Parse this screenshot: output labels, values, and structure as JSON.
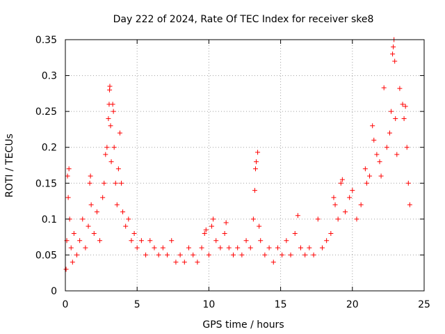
{
  "chart_data": {
    "type": "scatter",
    "title": "Day 222 of 2024, Rate Of TEC Index for receiver ske8",
    "xlabel": "GPS time / hours",
    "ylabel": "ROTI / TECUs",
    "xlim": [
      0,
      25
    ],
    "ylim": [
      0,
      0.35
    ],
    "xticks": [
      0,
      5,
      10,
      15,
      20,
      25
    ],
    "xtick_labels": [
      "0",
      "5",
      "10",
      "15",
      "20",
      "25"
    ],
    "yticks": [
      0,
      0.05,
      0.1,
      0.15,
      0.2,
      0.25,
      0.3,
      0.35
    ],
    "ytick_labels": [
      "0",
      "0.05",
      "0.1",
      "0.15",
      "0.2",
      "0.25",
      "0.3",
      "0.35"
    ],
    "grid": true,
    "marker": "plus",
    "color": "#ff0000",
    "series": [
      {
        "name": "ROTI",
        "points": [
          [
            0.05,
            0.03
          ],
          [
            0.1,
            0.07
          ],
          [
            0.15,
            0.16
          ],
          [
            0.2,
            0.13
          ],
          [
            0.25,
            0.17
          ],
          [
            0.3,
            0.1
          ],
          [
            0.4,
            0.06
          ],
          [
            0.5,
            0.04
          ],
          [
            0.6,
            0.08
          ],
          [
            0.8,
            0.05
          ],
          [
            1.0,
            0.07
          ],
          [
            1.2,
            0.1
          ],
          [
            1.4,
            0.06
          ],
          [
            1.6,
            0.09
          ],
          [
            1.7,
            0.15
          ],
          [
            1.75,
            0.16
          ],
          [
            1.8,
            0.12
          ],
          [
            2.0,
            0.08
          ],
          [
            2.2,
            0.11
          ],
          [
            2.4,
            0.07
          ],
          [
            2.6,
            0.13
          ],
          [
            2.7,
            0.15
          ],
          [
            2.8,
            0.19
          ],
          [
            2.9,
            0.2
          ],
          [
            3.0,
            0.24
          ],
          [
            3.05,
            0.26
          ],
          [
            3.08,
            0.28
          ],
          [
            3.1,
            0.285
          ],
          [
            3.15,
            0.23
          ],
          [
            3.2,
            0.18
          ],
          [
            3.3,
            0.26
          ],
          [
            3.35,
            0.25
          ],
          [
            3.4,
            0.2
          ],
          [
            3.5,
            0.15
          ],
          [
            3.6,
            0.12
          ],
          [
            3.7,
            0.17
          ],
          [
            3.8,
            0.22
          ],
          [
            3.9,
            0.15
          ],
          [
            4.0,
            0.11
          ],
          [
            4.2,
            0.09
          ],
          [
            4.4,
            0.1
          ],
          [
            4.6,
            0.07
          ],
          [
            4.8,
            0.08
          ],
          [
            5.0,
            0.06
          ],
          [
            5.3,
            0.07
          ],
          [
            5.6,
            0.05
          ],
          [
            5.9,
            0.07
          ],
          [
            6.2,
            0.06
          ],
          [
            6.5,
            0.05
          ],
          [
            6.8,
            0.06
          ],
          [
            7.1,
            0.05
          ],
          [
            7.4,
            0.07
          ],
          [
            7.7,
            0.04
          ],
          [
            8.0,
            0.05
          ],
          [
            8.3,
            0.04
          ],
          [
            8.6,
            0.06
          ],
          [
            8.9,
            0.05
          ],
          [
            9.2,
            0.04
          ],
          [
            9.5,
            0.06
          ],
          [
            9.7,
            0.08
          ],
          [
            9.8,
            0.085
          ],
          [
            10.0,
            0.05
          ],
          [
            10.2,
            0.09
          ],
          [
            10.3,
            0.1
          ],
          [
            10.5,
            0.07
          ],
          [
            10.8,
            0.06
          ],
          [
            11.1,
            0.08
          ],
          [
            11.2,
            0.095
          ],
          [
            11.4,
            0.06
          ],
          [
            11.7,
            0.05
          ],
          [
            12.0,
            0.06
          ],
          [
            12.3,
            0.05
          ],
          [
            12.6,
            0.07
          ],
          [
            12.9,
            0.06
          ],
          [
            13.1,
            0.1
          ],
          [
            13.2,
            0.14
          ],
          [
            13.25,
            0.17
          ],
          [
            13.3,
            0.18
          ],
          [
            13.4,
            0.193
          ],
          [
            13.5,
            0.09
          ],
          [
            13.6,
            0.07
          ],
          [
            13.9,
            0.05
          ],
          [
            14.2,
            0.06
          ],
          [
            14.5,
            0.04
          ],
          [
            14.8,
            0.06
          ],
          [
            15.1,
            0.05
          ],
          [
            15.4,
            0.07
          ],
          [
            15.7,
            0.05
          ],
          [
            16.0,
            0.08
          ],
          [
            16.2,
            0.105
          ],
          [
            16.4,
            0.06
          ],
          [
            16.7,
            0.05
          ],
          [
            17.0,
            0.06
          ],
          [
            17.3,
            0.05
          ],
          [
            17.6,
            0.1
          ],
          [
            17.9,
            0.06
          ],
          [
            18.2,
            0.07
          ],
          [
            18.5,
            0.08
          ],
          [
            18.7,
            0.13
          ],
          [
            18.8,
            0.12
          ],
          [
            19.0,
            0.1
          ],
          [
            19.2,
            0.15
          ],
          [
            19.3,
            0.155
          ],
          [
            19.5,
            0.11
          ],
          [
            19.8,
            0.13
          ],
          [
            20.0,
            0.14
          ],
          [
            20.3,
            0.1
          ],
          [
            20.6,
            0.12
          ],
          [
            20.9,
            0.17
          ],
          [
            21.0,
            0.15
          ],
          [
            21.2,
            0.16
          ],
          [
            21.4,
            0.23
          ],
          [
            21.5,
            0.21
          ],
          [
            21.7,
            0.19
          ],
          [
            21.9,
            0.18
          ],
          [
            22.0,
            0.16
          ],
          [
            22.2,
            0.283
          ],
          [
            22.4,
            0.2
          ],
          [
            22.6,
            0.22
          ],
          [
            22.7,
            0.25
          ],
          [
            22.8,
            0.33
          ],
          [
            22.85,
            0.34
          ],
          [
            22.9,
            0.35
          ],
          [
            22.95,
            0.32
          ],
          [
            23.0,
            0.24
          ],
          [
            23.1,
            0.19
          ],
          [
            23.3,
            0.282
          ],
          [
            23.5,
            0.26
          ],
          [
            23.6,
            0.24
          ],
          [
            23.7,
            0.257
          ],
          [
            23.8,
            0.2
          ],
          [
            23.9,
            0.15
          ],
          [
            24.0,
            0.12
          ]
        ]
      }
    ]
  }
}
